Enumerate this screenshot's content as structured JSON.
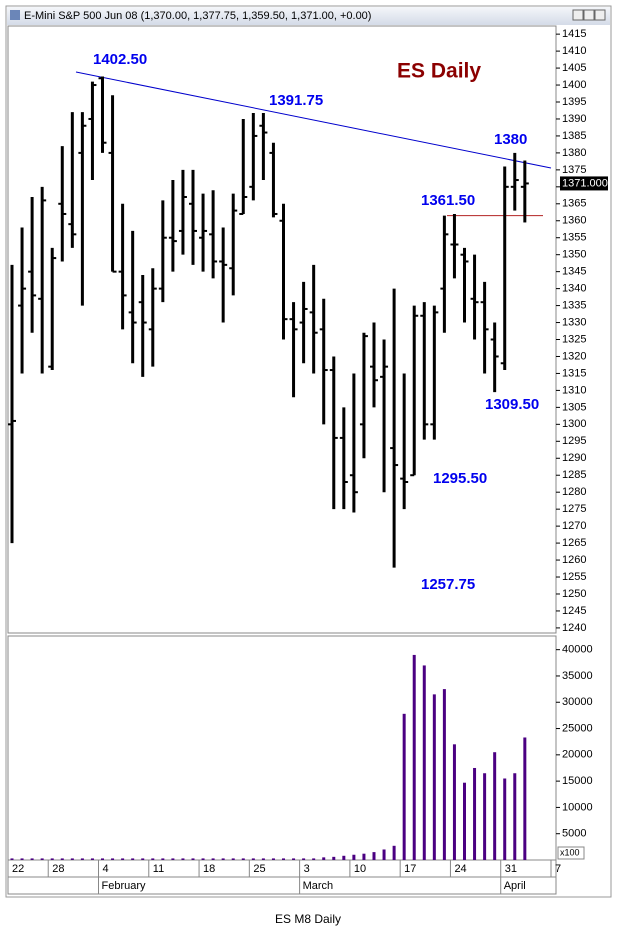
{
  "window_title": "E-Mini S&P 500 Jun 08 (1,370.00, 1,377.75, 1,359.50, 1,371.00, +0.00)",
  "footer": "ES M8 Daily",
  "chart_data": [
    {
      "type": "ohlc",
      "title": "ES Daily",
      "open": [
        1300,
        1335,
        1345,
        1337,
        1317,
        1365,
        1359,
        1380,
        1390,
        1402,
        1380,
        1345,
        1333,
        1336,
        1328,
        1340,
        1355,
        1357,
        1365,
        1355,
        1356,
        1348,
        1346,
        1362,
        1370,
        1388,
        1380,
        1360,
        1331,
        1330,
        1333,
        1328,
        1316,
        1296,
        1285,
        1300,
        1317,
        1314,
        1293,
        1284,
        1285,
        1332,
        1300,
        1340,
        1353,
        1350,
        1337,
        1336,
        1325,
        1318,
        1370,
        1370,
        null,
        null,
        null
      ],
      "high": [
        1347,
        1358,
        1367,
        1370,
        1352,
        1382,
        1392,
        1392,
        1401,
        1402.5,
        1397,
        1365,
        1357,
        1344,
        1346,
        1366,
        1372,
        1375,
        1375,
        1368,
        1369,
        1358,
        1368,
        1390,
        1391.75,
        1391.75,
        1383,
        1365,
        1336,
        1342,
        1347,
        1337,
        1320,
        1305,
        1315,
        1327,
        1330,
        1325,
        1340,
        1315,
        1335,
        1336,
        1335,
        1361.5,
        1362,
        1352,
        1350,
        1342,
        1330,
        1376,
        1380,
        1377.75,
        null,
        null,
        null
      ],
      "low": [
        1265,
        1315,
        1327,
        1315,
        1316,
        1348,
        1352,
        1335,
        1372,
        1380,
        1345,
        1328,
        1318,
        1314,
        1317,
        1336,
        1345,
        1350,
        1347,
        1345,
        1343,
        1330,
        1338,
        1362,
        1366,
        1372,
        1361,
        1325,
        1308,
        1318,
        1315,
        1300,
        1275,
        1275,
        1274,
        1290,
        1305,
        1280,
        1257.75,
        1275,
        1285,
        1295.5,
        1295.5,
        1327,
        1343,
        1330,
        1325,
        1315,
        1309.5,
        1316,
        1363,
        1359.5,
        null,
        null,
        null
      ],
      "close": [
        1301,
        1340,
        1338,
        1366,
        1349,
        1362,
        1356,
        1388,
        1400,
        1383,
        1345,
        1338,
        1330,
        1330,
        1340,
        1355,
        1354,
        1367,
        1357,
        1357,
        1348,
        1347,
        1363,
        1367,
        1385,
        1386,
        1362,
        1331,
        1328,
        1334,
        1327,
        1316,
        1296,
        1283,
        1280,
        1326,
        1313,
        1317,
        1288,
        1283,
        1332,
        1300,
        1333,
        1356,
        1353,
        1348,
        1336,
        1328,
        1320,
        1370,
        1372,
        1371,
        null,
        null,
        null
      ],
      "color": "#000000",
      "ylim": [
        1238.5,
        1417.4
      ],
      "yticks": [
        1240,
        1245,
        1250,
        1255,
        1260,
        1265,
        1270,
        1275,
        1280,
        1285,
        1290,
        1295,
        1300,
        1305,
        1310,
        1315,
        1320,
        1325,
        1330,
        1335,
        1340,
        1345,
        1350,
        1355,
        1360,
        1365,
        1370,
        1375,
        1380,
        1385,
        1390,
        1395,
        1400,
        1405,
        1410,
        1415
      ],
      "last_price": {
        "value": 1371,
        "label": "1371.000"
      },
      "annotations": [
        "1402.50",
        "1391.75",
        "1380",
        "1361.50",
        "1309.50",
        "1295.50",
        "1257.75"
      ],
      "annotation_color": "#0000ee",
      "title_color": "#8b0000"
    },
    {
      "type": "bar",
      "categories": [
        "22",
        null,
        null,
        null,
        "28",
        null,
        null,
        null,
        null,
        "4",
        null,
        null,
        null,
        null,
        "11",
        null,
        null,
        null,
        null,
        "18",
        null,
        null,
        null,
        null,
        "25",
        null,
        null,
        null,
        null,
        "3",
        null,
        null,
        null,
        null,
        "10",
        null,
        null,
        null,
        null,
        "17",
        null,
        null,
        null,
        null,
        "24",
        null,
        null,
        null,
        null,
        "31",
        null,
        null,
        null,
        null,
        "7"
      ],
      "months": [
        null,
        null,
        null,
        null,
        null,
        null,
        null,
        null,
        null,
        "February",
        null,
        null,
        null,
        null,
        null,
        null,
        null,
        null,
        null,
        null,
        null,
        null,
        null,
        null,
        null,
        null,
        null,
        null,
        null,
        "March",
        null,
        null,
        null,
        null,
        null,
        null,
        null,
        null,
        null,
        null,
        null,
        null,
        null,
        null,
        null,
        null,
        null,
        null,
        null,
        "April",
        null,
        null,
        null,
        null,
        null
      ],
      "values": [
        300,
        300,
        300,
        300,
        300,
        300,
        300,
        300,
        300,
        300,
        300,
        300,
        300,
        300,
        300,
        300,
        300,
        300,
        300,
        300,
        300,
        300,
        300,
        300,
        300,
        300,
        300,
        300,
        300,
        300,
        300,
        500,
        600,
        800,
        1000,
        1200,
        1500,
        2000,
        2700,
        27800,
        39000,
        37000,
        31500,
        32500,
        22000,
        14700,
        17500,
        16500,
        20500,
        15500,
        16500,
        23300,
        null,
        null,
        null
      ],
      "color": "#4b0082",
      "ylim": [
        0,
        42600
      ],
      "yticks": [
        5000,
        10000,
        15000,
        20000,
        25000,
        30000,
        35000,
        40000
      ],
      "unit_label": "x100"
    }
  ]
}
